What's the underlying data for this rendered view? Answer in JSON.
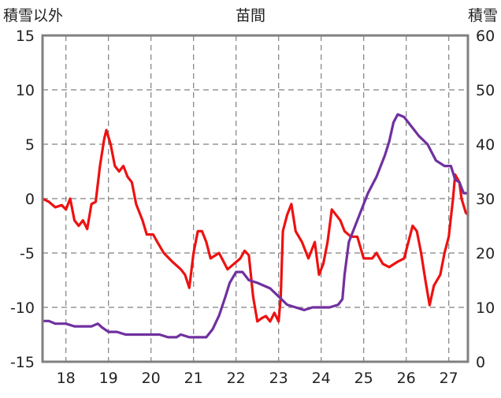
{
  "chart_data": {
    "type": "line",
    "title": "苗間",
    "left_axis_label": "積雪以外",
    "right_axis_label": "積雪",
    "grid": true,
    "x_ticks": [
      "18",
      "19",
      "20",
      "21",
      "22",
      "23",
      "24",
      "25",
      "26",
      "27"
    ],
    "xlim": [
      17.45,
      27.45
    ],
    "left_ylim": [
      -15,
      15
    ],
    "left_yticks": [
      "15",
      "10",
      "5",
      "0",
      "-5",
      "-10",
      "-15"
    ],
    "right_ylim": [
      0,
      60
    ],
    "right_yticks": [
      "60",
      "50",
      "40",
      "30",
      "20",
      "10",
      "0"
    ],
    "colors": {
      "series_red": "#ee1111",
      "series_purple": "#7030a0",
      "frame": "#808080",
      "grid": "#808080"
    },
    "series": [
      {
        "axis": "left",
        "color": "#ee1111",
        "points": [
          [
            17.45,
            0.0
          ],
          [
            17.6,
            -0.3
          ],
          [
            17.75,
            -0.8
          ],
          [
            17.9,
            -0.6
          ],
          [
            18.0,
            -1.0
          ],
          [
            18.1,
            0.0
          ],
          [
            18.2,
            -2.0
          ],
          [
            18.3,
            -2.5
          ],
          [
            18.4,
            -2.0
          ],
          [
            18.5,
            -2.8
          ],
          [
            18.6,
            -0.5
          ],
          [
            18.7,
            -0.3
          ],
          [
            18.8,
            3.0
          ],
          [
            18.9,
            5.5
          ],
          [
            18.95,
            6.3
          ],
          [
            19.05,
            5.0
          ],
          [
            19.15,
            3.0
          ],
          [
            19.25,
            2.5
          ],
          [
            19.35,
            3.0
          ],
          [
            19.45,
            2.0
          ],
          [
            19.55,
            1.5
          ],
          [
            19.65,
            -0.5
          ],
          [
            19.8,
            -2.0
          ],
          [
            19.9,
            -3.3
          ],
          [
            20.05,
            -3.3
          ],
          [
            20.15,
            -4.0
          ],
          [
            20.3,
            -5.0
          ],
          [
            20.5,
            -5.8
          ],
          [
            20.7,
            -6.5
          ],
          [
            20.8,
            -7.0
          ],
          [
            20.9,
            -8.2
          ],
          [
            21.0,
            -5.0
          ],
          [
            21.1,
            -3.0
          ],
          [
            21.2,
            -3.0
          ],
          [
            21.3,
            -4.0
          ],
          [
            21.4,
            -5.5
          ],
          [
            21.6,
            -5.0
          ],
          [
            21.8,
            -6.5
          ],
          [
            21.95,
            -6.0
          ],
          [
            22.1,
            -5.5
          ],
          [
            22.2,
            -4.8
          ],
          [
            22.3,
            -5.2
          ],
          [
            22.4,
            -9.0
          ],
          [
            22.5,
            -11.3
          ],
          [
            22.6,
            -11.0
          ],
          [
            22.7,
            -10.8
          ],
          [
            22.8,
            -11.3
          ],
          [
            22.9,
            -10.5
          ],
          [
            23.0,
            -11.3
          ],
          [
            23.05,
            -9.0
          ],
          [
            23.1,
            -3.0
          ],
          [
            23.2,
            -1.5
          ],
          [
            23.3,
            -0.5
          ],
          [
            23.4,
            -3.0
          ],
          [
            23.55,
            -4.0
          ],
          [
            23.7,
            -5.5
          ],
          [
            23.85,
            -4.0
          ],
          [
            23.95,
            -7.0
          ],
          [
            24.05,
            -6.0
          ],
          [
            24.15,
            -4.0
          ],
          [
            24.25,
            -1.0
          ],
          [
            24.35,
            -1.5
          ],
          [
            24.45,
            -2.0
          ],
          [
            24.55,
            -3.0
          ],
          [
            24.7,
            -3.5
          ],
          [
            24.85,
            -3.5
          ],
          [
            25.0,
            -5.5
          ],
          [
            25.2,
            -5.5
          ],
          [
            25.3,
            -5.0
          ],
          [
            25.45,
            -6.0
          ],
          [
            25.6,
            -6.3
          ],
          [
            25.8,
            -5.8
          ],
          [
            25.95,
            -5.5
          ],
          [
            26.05,
            -4.0
          ],
          [
            26.15,
            -2.5
          ],
          [
            26.25,
            -3.0
          ],
          [
            26.35,
            -5.0
          ],
          [
            26.45,
            -7.5
          ],
          [
            26.55,
            -9.8
          ],
          [
            26.65,
            -8.0
          ],
          [
            26.8,
            -7.0
          ],
          [
            26.9,
            -5.0
          ],
          [
            27.0,
            -3.5
          ],
          [
            27.1,
            0.0
          ],
          [
            27.15,
            2.2
          ],
          [
            27.25,
            1.5
          ],
          [
            27.3,
            0.0
          ],
          [
            27.4,
            -1.3
          ],
          [
            27.45,
            -1.5
          ]
        ]
      },
      {
        "axis": "right",
        "color": "#7030a0",
        "points": [
          [
            17.45,
            7.5
          ],
          [
            17.6,
            7.5
          ],
          [
            17.75,
            7.0
          ],
          [
            18.0,
            7.0
          ],
          [
            18.2,
            6.5
          ],
          [
            18.4,
            6.5
          ],
          [
            18.6,
            6.5
          ],
          [
            18.75,
            7.0
          ],
          [
            18.85,
            6.3
          ],
          [
            19.0,
            5.5
          ],
          [
            19.2,
            5.5
          ],
          [
            19.4,
            5.0
          ],
          [
            19.7,
            5.0
          ],
          [
            20.0,
            5.0
          ],
          [
            20.2,
            5.0
          ],
          [
            20.4,
            4.5
          ],
          [
            20.6,
            4.5
          ],
          [
            20.7,
            5.0
          ],
          [
            20.9,
            4.5
          ],
          [
            21.1,
            4.5
          ],
          [
            21.3,
            4.5
          ],
          [
            21.45,
            6.0
          ],
          [
            21.6,
            8.5
          ],
          [
            21.75,
            12.0
          ],
          [
            21.85,
            14.5
          ],
          [
            22.0,
            16.5
          ],
          [
            22.15,
            16.5
          ],
          [
            22.3,
            15.0
          ],
          [
            22.5,
            14.5
          ],
          [
            22.65,
            14.0
          ],
          [
            22.8,
            13.5
          ],
          [
            23.0,
            12.0
          ],
          [
            23.2,
            10.5
          ],
          [
            23.4,
            10.0
          ],
          [
            23.6,
            9.5
          ],
          [
            23.8,
            10.0
          ],
          [
            24.0,
            10.0
          ],
          [
            24.2,
            10.0
          ],
          [
            24.4,
            10.5
          ],
          [
            24.5,
            11.5
          ],
          [
            24.55,
            16.0
          ],
          [
            24.65,
            22.0
          ],
          [
            24.75,
            24.0
          ],
          [
            24.9,
            27.0
          ],
          [
            25.1,
            31.0
          ],
          [
            25.3,
            34.0
          ],
          [
            25.5,
            38.0
          ],
          [
            25.6,
            40.5
          ],
          [
            25.7,
            44.0
          ],
          [
            25.8,
            45.5
          ],
          [
            25.95,
            45.0
          ],
          [
            26.1,
            43.5
          ],
          [
            26.3,
            41.5
          ],
          [
            26.5,
            40.0
          ],
          [
            26.7,
            37.0
          ],
          [
            26.9,
            36.0
          ],
          [
            27.05,
            36.0
          ],
          [
            27.15,
            33.5
          ],
          [
            27.25,
            33.0
          ],
          [
            27.35,
            31.0
          ],
          [
            27.45,
            31.0
          ]
        ]
      }
    ]
  }
}
